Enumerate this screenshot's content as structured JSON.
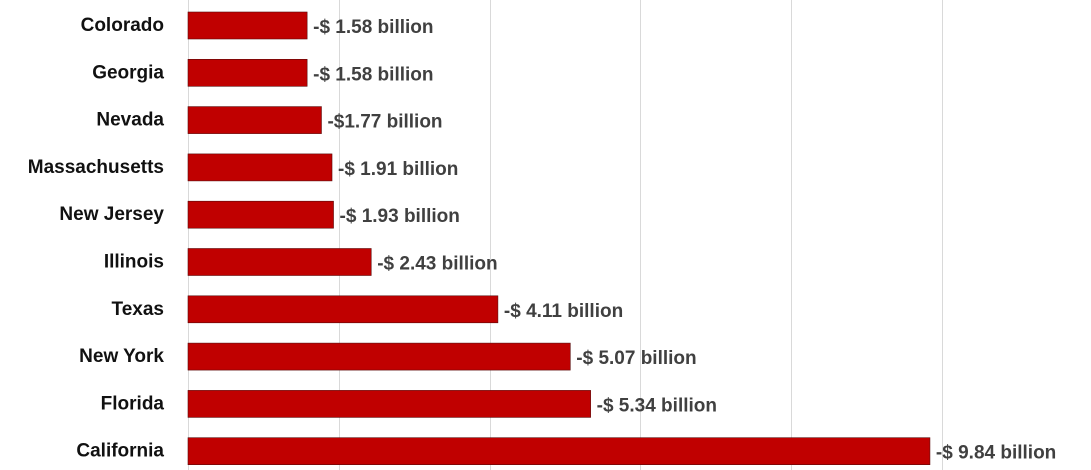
{
  "chart_data": {
    "type": "bar",
    "orientation": "horizontal",
    "categories": [
      "Colorado",
      "Georgia",
      "Nevada",
      "Massachusetts",
      "New Jersey",
      "Illinois",
      "Texas",
      "New York",
      "Florida",
      "California"
    ],
    "values": [
      1.58,
      1.58,
      1.77,
      1.91,
      1.93,
      2.43,
      4.11,
      5.07,
      5.34,
      9.84
    ],
    "data_labels": [
      "-$ 1.58 billion",
      "-$ 1.58 billion",
      "-$1.77 billion",
      "-$ 1.91 billion",
      "-$ 1.93 billion",
      "-$ 2.43 billion",
      "-$ 4.11 billion",
      "-$ 5.07 billion",
      "-$ 5.34 billion",
      "-$ 9.84 billion"
    ],
    "title": "",
    "xlabel": "",
    "ylabel": "",
    "xlim": [
      0,
      12
    ],
    "grid": true,
    "gridlines_at": [
      0,
      2,
      4,
      6,
      8,
      10,
      12
    ],
    "legend": "none",
    "bar_color": "#c00000",
    "grid_color": "#d9d9d9"
  }
}
